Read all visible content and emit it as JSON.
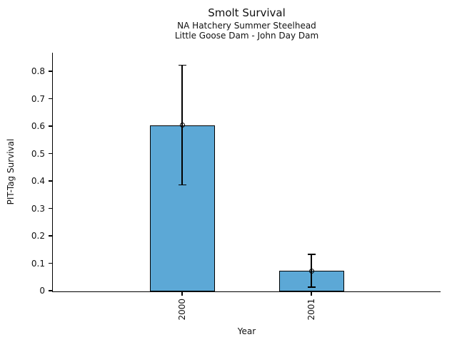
{
  "chart_data": {
    "type": "bar",
    "title": "Smolt Survival",
    "subtitle": [
      "NA Hatchery Summer Steelhead",
      "Little Goose Dam - John Day Dam"
    ],
    "xlabel": "Year",
    "ylabel": "PIT-Tag Survival",
    "categories": [
      "2000",
      "2001"
    ],
    "values": [
      0.603,
      0.072
    ],
    "error_bars": {
      "low": [
        0.386,
        0.013
      ],
      "high": [
        0.822,
        0.133
      ]
    },
    "marker": "open-circle",
    "ylim": [
      0,
      0.868
    ],
    "yticks": [
      0,
      0.1,
      0.2,
      0.3,
      0.4,
      0.5,
      0.6,
      0.7,
      0.8
    ],
    "ytick_labels": [
      "0",
      "0.1",
      "0.2",
      "0.3",
      "0.4",
      "0.5",
      "0.6",
      "0.7",
      "0.8"
    ],
    "xticklabel_rotation": 90,
    "grid": false,
    "legend": null,
    "bar_color": "#5CA8D6",
    "bar_edge_color": "#000000",
    "error_color": "#000000",
    "background_color": "#ffffff"
  }
}
